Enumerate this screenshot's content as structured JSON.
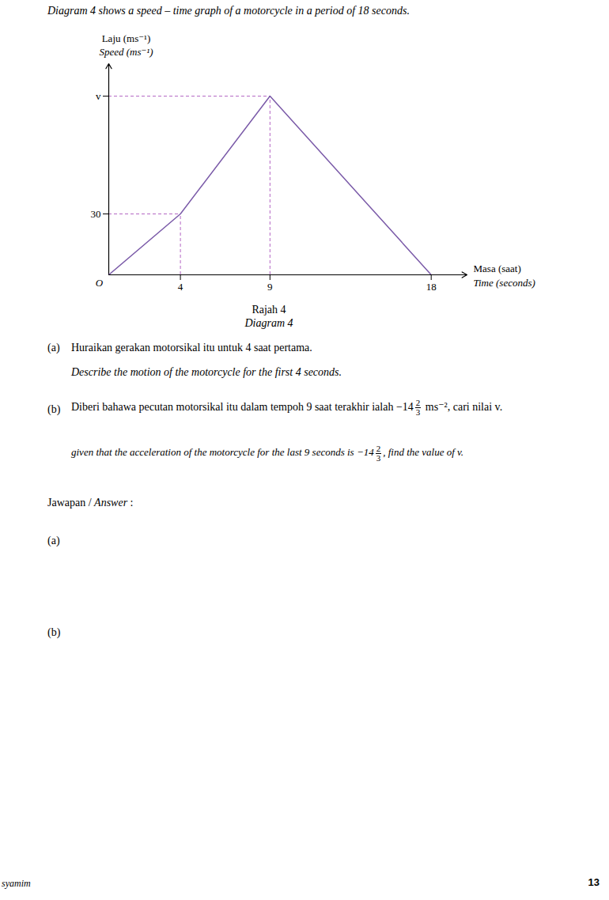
{
  "intro": "Diagram 4 shows a speed – time graph of a motorcycle in a period of 18 seconds.",
  "chart_data": {
    "type": "line",
    "y_label_malay": "Laju (ms⁻¹)",
    "y_label_english": "Speed (ms⁻¹)",
    "x_label_malay": "Masa (saat)",
    "x_label_english": "Time (seconds)",
    "origin_label": "O",
    "x": [
      0,
      4,
      9,
      18
    ],
    "values": [
      0,
      30,
      88,
      0
    ],
    "color": "#7a5aa8",
    "xlim": [
      0,
      20
    ],
    "ylim": [
      0,
      104
    ],
    "xticks": [
      4,
      9,
      18
    ],
    "yticks": [
      30,
      {
        "value": 88,
        "label": "v"
      }
    ],
    "grid": false
  },
  "caption": {
    "malay": "Rajah 4",
    "english": "Diagram 4"
  },
  "questions": [
    {
      "number": "(a)",
      "malay": "Huraikan gerakan motorsikal itu untuk 4 saat pertama.",
      "english": "Describe the motion of the motorcycle for the first 4 seconds."
    },
    {
      "number": "(b)",
      "malay": {
        "before": "Diberi bahawa pecutan motorsikal itu dalam tempoh 9 saat terakhir ialah −14",
        "numerator": "2",
        "denominator": "3",
        "after": " ms⁻², cari nilai v."
      },
      "english": {
        "before": "given that the acceleration of the motorcycle for the last 9 seconds is −14",
        "numerator": "2",
        "denominator": "3",
        "after": ", find the value of v."
      }
    }
  ],
  "answer_label": {
    "malay": "Jawapan / ",
    "english": "Answer",
    "end": " :"
  },
  "answer_parts": [
    "(a)",
    "(b)"
  ],
  "footer": {
    "left": "syamim",
    "right": "13"
  }
}
